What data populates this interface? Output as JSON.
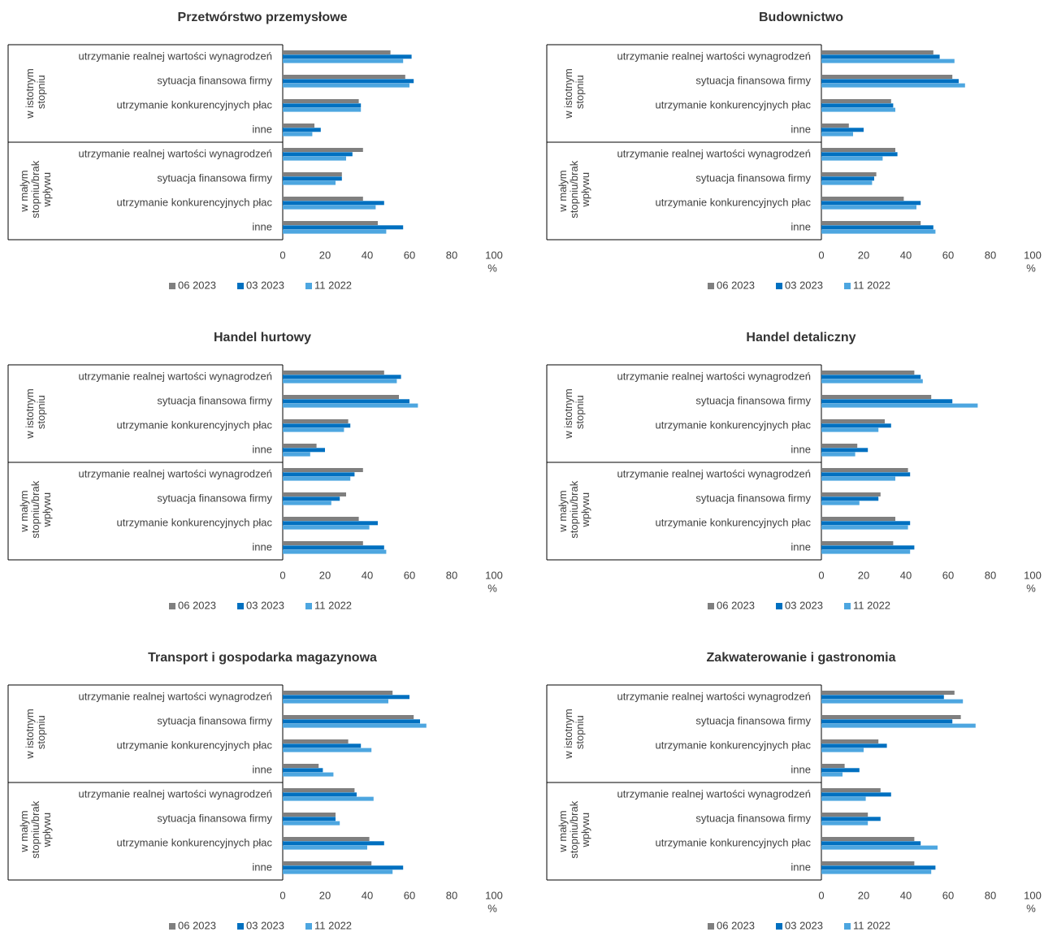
{
  "chart_data": [
    {
      "type": "bar",
      "orientation": "horizontal",
      "title": "Przetwórstwo przemysłowe",
      "unit": "%",
      "categories": [
        "utrzymanie realnej wartości wynagrodzeń",
        "sytuacja finansowa firmy",
        "utrzymanie konkurencyjnych płac",
        "inne",
        "utrzymanie realnej wartości wynagrodzeń",
        "sytuacja finansowa firmy",
        "utrzymanie konkurencyjnych płac",
        "inne"
      ],
      "groups": [
        "w istotnym stopniu",
        "w małym stopniu/brak wpływu"
      ],
      "series": [
        {
          "name": "06 2023",
          "color": "#7f7f7f",
          "values": [
            51,
            58,
            36,
            15,
            38,
            28,
            38,
            45
          ]
        },
        {
          "name": "03 2023",
          "color": "#0070c0",
          "values": [
            61,
            62,
            37,
            18,
            33,
            28,
            48,
            57
          ]
        },
        {
          "name": "11 2022",
          "color": "#4da6e0",
          "values": [
            57,
            60,
            37,
            14,
            30,
            25,
            44,
            49
          ]
        }
      ],
      "xlim": [
        0,
        100
      ],
      "xticks": [
        0,
        20,
        40,
        60,
        80,
        100
      ]
    },
    {
      "type": "bar",
      "orientation": "horizontal",
      "title": "Budownictwo",
      "unit": "%",
      "categories": [
        "utrzymanie realnej wartości wynagrodzeń",
        "sytuacja finansowa firmy",
        "utrzymanie konkurencyjnych płac",
        "inne",
        "utrzymanie realnej wartości wynagrodzeń",
        "sytuacja finansowa firmy",
        "utrzymanie konkurencyjnych płac",
        "inne"
      ],
      "groups": [
        "w istotnym stopniu",
        "w małym stopniu/brak wpływu"
      ],
      "series": [
        {
          "name": "06 2023",
          "color": "#7f7f7f",
          "values": [
            53,
            62,
            33,
            13,
            35,
            26,
            39,
            47
          ]
        },
        {
          "name": "03 2023",
          "color": "#0070c0",
          "values": [
            56,
            65,
            34,
            20,
            36,
            25,
            47,
            53
          ]
        },
        {
          "name": "11 2022",
          "color": "#4da6e0",
          "values": [
            63,
            68,
            35,
            15,
            29,
            24,
            45,
            54
          ]
        }
      ],
      "xlim": [
        0,
        100
      ],
      "xticks": [
        0,
        20,
        40,
        60,
        80,
        100
      ]
    },
    {
      "type": "bar",
      "orientation": "horizontal",
      "title": "Handel hurtowy",
      "unit": "%",
      "categories": [
        "utrzymanie realnej wartości wynagrodzeń",
        "sytuacja finansowa firmy",
        "utrzymanie konkurencyjnych płac",
        "inne",
        "utrzymanie realnej wartości wynagrodzeń",
        "sytuacja finansowa firmy",
        "utrzymanie konkurencyjnych płac",
        "inne"
      ],
      "groups": [
        "w istotnym stopniu",
        "w małym stopniu/brak wpływu"
      ],
      "series": [
        {
          "name": "06 2023",
          "color": "#7f7f7f",
          "values": [
            48,
            55,
            31,
            16,
            38,
            30,
            36,
            38
          ]
        },
        {
          "name": "03 2023",
          "color": "#0070c0",
          "values": [
            56,
            60,
            32,
            20,
            34,
            27,
            45,
            48
          ]
        },
        {
          "name": "11 2022",
          "color": "#4da6e0",
          "values": [
            54,
            64,
            29,
            13,
            32,
            23,
            41,
            49
          ]
        }
      ],
      "xlim": [
        0,
        100
      ],
      "xticks": [
        0,
        20,
        40,
        60,
        80,
        100
      ]
    },
    {
      "type": "bar",
      "orientation": "horizontal",
      "title": "Handel detaliczny",
      "unit": "%",
      "categories": [
        "utrzymanie realnej wartości wynagrodzeń",
        "sytuacja finansowa firmy",
        "utrzymanie konkurencyjnych płac",
        "inne",
        "utrzymanie realnej wartości wynagrodzeń",
        "sytuacja finansowa firmy",
        "utrzymanie konkurencyjnych płac",
        "inne"
      ],
      "groups": [
        "w istotnym stopniu",
        "w małym stopniu/brak wpływu"
      ],
      "series": [
        {
          "name": "06 2023",
          "color": "#7f7f7f",
          "values": [
            44,
            52,
            30,
            17,
            41,
            28,
            35,
            34
          ]
        },
        {
          "name": "03 2023",
          "color": "#0070c0",
          "values": [
            47,
            62,
            33,
            22,
            42,
            27,
            42,
            44
          ]
        },
        {
          "name": "11 2022",
          "color": "#4da6e0",
          "values": [
            48,
            74,
            27,
            16,
            35,
            18,
            41,
            42
          ]
        }
      ],
      "xlim": [
        0,
        100
      ],
      "xticks": [
        0,
        20,
        40,
        60,
        80,
        100
      ]
    },
    {
      "type": "bar",
      "orientation": "horizontal",
      "title": "Transport i gospodarka magazynowa",
      "unit": "%",
      "categories": [
        "utrzymanie realnej wartości wynagrodzeń",
        "sytuacja finansowa firmy",
        "utrzymanie konkurencyjnych płac",
        "inne",
        "utrzymanie realnej wartości wynagrodzeń",
        "sytuacja finansowa firmy",
        "utrzymanie konkurencyjnych płac",
        "inne"
      ],
      "groups": [
        "w istotnym stopniu",
        "w małym stopniu/brak wpływu"
      ],
      "series": [
        {
          "name": "06 2023",
          "color": "#7f7f7f",
          "values": [
            52,
            62,
            31,
            17,
            34,
            25,
            41,
            42
          ]
        },
        {
          "name": "03 2023",
          "color": "#0070c0",
          "values": [
            60,
            65,
            37,
            19,
            35,
            25,
            48,
            57
          ]
        },
        {
          "name": "11 2022",
          "color": "#4da6e0",
          "values": [
            50,
            68,
            42,
            24,
            43,
            27,
            40,
            52
          ]
        }
      ],
      "xlim": [
        0,
        100
      ],
      "xticks": [
        0,
        20,
        40,
        60,
        80,
        100
      ]
    },
    {
      "type": "bar",
      "orientation": "horizontal",
      "title": "Zakwaterowanie i gastronomia",
      "unit": "%",
      "categories": [
        "utrzymanie realnej wartości wynagrodzeń",
        "sytuacja finansowa firmy",
        "utrzymanie konkurencyjnych płac",
        "inne",
        "utrzymanie realnej wartości wynagrodzeń",
        "sytuacja finansowa firmy",
        "utrzymanie konkurencyjnych płac",
        "inne"
      ],
      "groups": [
        "w istotnym stopniu",
        "w małym stopniu/brak wpływu"
      ],
      "series": [
        {
          "name": "06 2023",
          "color": "#7f7f7f",
          "values": [
            63,
            66,
            27,
            11,
            28,
            22,
            44,
            44
          ]
        },
        {
          "name": "03 2023",
          "color": "#0070c0",
          "values": [
            58,
            62,
            31,
            18,
            33,
            28,
            47,
            54
          ]
        },
        {
          "name": "11 2022",
          "color": "#4da6e0",
          "values": [
            67,
            73,
            20,
            10,
            21,
            22,
            55,
            52
          ]
        }
      ],
      "xlim": [
        0,
        100
      ],
      "xticks": [
        0,
        20,
        40,
        60,
        80,
        100
      ]
    }
  ]
}
